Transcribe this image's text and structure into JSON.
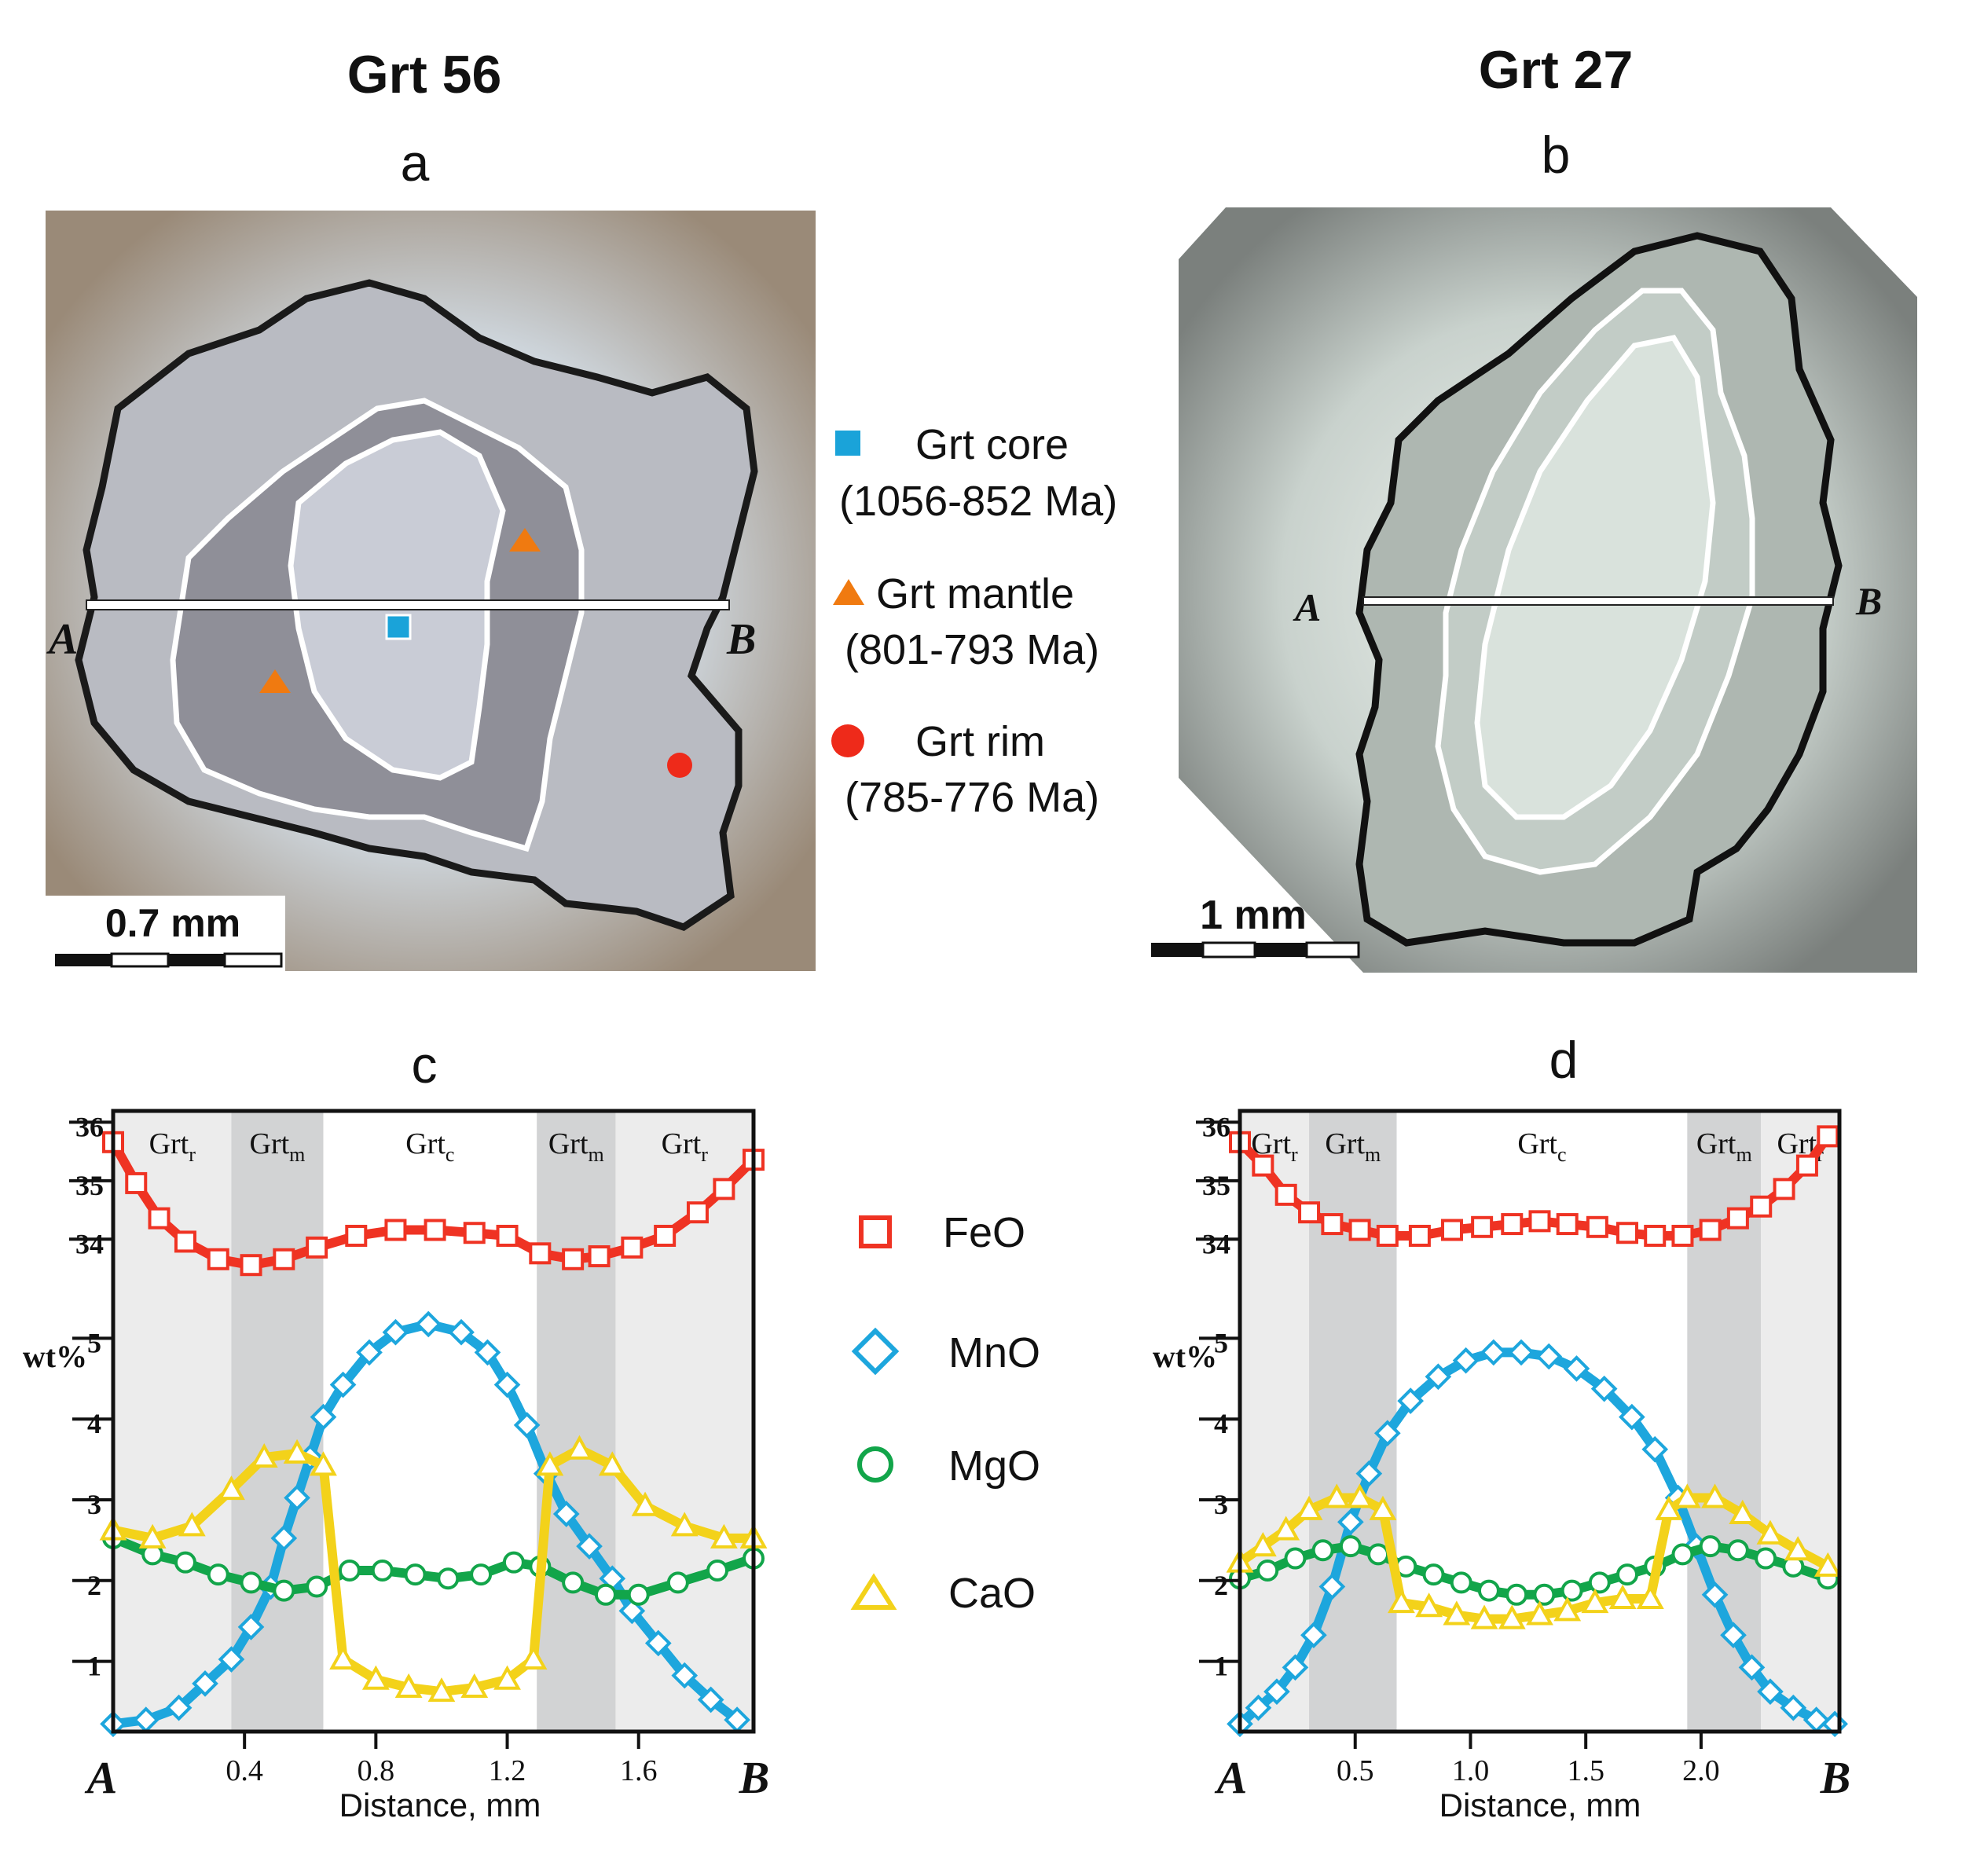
{
  "panels": {
    "a": {
      "title": "Grt 56",
      "letter": "a",
      "scale_label": "0.7 mm",
      "point_a": "A",
      "point_b": "B"
    },
    "b": {
      "title": "Grt 27",
      "letter": "b",
      "scale_label": "1 mm",
      "point_a": "A",
      "point_b": "B"
    }
  },
  "spot_legend": [
    {
      "name": "Grt core",
      "age": "(1056-852 Ma)",
      "shape": "square",
      "color": "#1aa3d9"
    },
    {
      "name": "Grt mantle",
      "age": "(801-793 Ma)",
      "shape": "triangle",
      "color": "#f07a10"
    },
    {
      "name": "Grt rim",
      "age": "(785-776 Ma)",
      "shape": "circle",
      "color": "#ee2a1a"
    }
  ],
  "series_legend": [
    {
      "name": "FeO",
      "marker": "square",
      "color": "#ef3323"
    },
    {
      "name": "MnO",
      "marker": "diamond",
      "color": "#1da6dd"
    },
    {
      "name": "MgO",
      "marker": "circle",
      "color": "#12a54a"
    },
    {
      "name": "CaO",
      "marker": "triangle",
      "color": "#f3d21a"
    }
  ],
  "chart_data": [
    {
      "type": "line",
      "panel": "c",
      "title": "c",
      "xlabel": "Distance, mm",
      "ylabel": "wt%",
      "x_start_label": "A",
      "x_end_label": "B",
      "xlim": [
        0,
        1.95
      ],
      "xticks": [
        0.4,
        0.8,
        1.2,
        1.6
      ],
      "xtick_labels": [
        "0.4",
        "0.8",
        "1.2",
        "1.6"
      ],
      "yticks_lower": [
        1,
        2,
        3,
        4,
        5
      ],
      "yticks_upper": [
        34,
        35,
        36
      ],
      "zones": [
        {
          "label": "Grt",
          "sub": "r",
          "x0": 0.0,
          "x1": 0.36,
          "shade": "light"
        },
        {
          "label": "Grt",
          "sub": "m",
          "x0": 0.36,
          "x1": 0.64,
          "shade": "dark"
        },
        {
          "label": "Grt",
          "sub": "c",
          "x0": 0.64,
          "x1": 1.29,
          "shade": "white"
        },
        {
          "label": "Grt",
          "sub": "m",
          "x0": 1.29,
          "x1": 1.53,
          "shade": "dark"
        },
        {
          "label": "Grt",
          "sub": "r",
          "x0": 1.53,
          "x1": 1.95,
          "shade": "light"
        }
      ],
      "series": [
        {
          "name": "FeO",
          "x": [
            0.0,
            0.07,
            0.14,
            0.22,
            0.32,
            0.42,
            0.52,
            0.62,
            0.74,
            0.86,
            0.98,
            1.1,
            1.2,
            1.3,
            1.4,
            1.48,
            1.58,
            1.68,
            1.78,
            1.86,
            1.95
          ],
          "values": [
            35.9,
            35.2,
            34.6,
            34.2,
            33.9,
            33.8,
            33.9,
            34.1,
            34.3,
            34.4,
            34.4,
            34.35,
            34.3,
            34.0,
            33.9,
            33.95,
            34.1,
            34.3,
            34.7,
            35.1,
            35.6
          ]
        },
        {
          "name": "MnO",
          "x": [
            0.0,
            0.1,
            0.2,
            0.28,
            0.36,
            0.42,
            0.48,
            0.52,
            0.56,
            0.6,
            0.64,
            0.7,
            0.78,
            0.86,
            0.96,
            1.06,
            1.14,
            1.2,
            1.26,
            1.32,
            1.38,
            1.45,
            1.52,
            1.58,
            1.66,
            1.74,
            1.82,
            1.9
          ],
          "values": [
            0.4,
            0.45,
            0.6,
            0.9,
            1.2,
            1.6,
            2.1,
            2.7,
            3.2,
            3.7,
            4.2,
            4.6,
            5.0,
            5.25,
            5.35,
            5.25,
            5.0,
            4.6,
            4.1,
            3.5,
            3.0,
            2.6,
            2.2,
            1.8,
            1.4,
            1.0,
            0.7,
            0.45
          ]
        },
        {
          "name": "MgO",
          "x": [
            0.0,
            0.12,
            0.22,
            0.32,
            0.42,
            0.52,
            0.62,
            0.72,
            0.82,
            0.92,
            1.02,
            1.12,
            1.22,
            1.3,
            1.4,
            1.5,
            1.6,
            1.72,
            1.84,
            1.95
          ],
          "values": [
            2.7,
            2.5,
            2.4,
            2.25,
            2.15,
            2.05,
            2.1,
            2.3,
            2.3,
            2.25,
            2.2,
            2.25,
            2.4,
            2.35,
            2.15,
            2.0,
            2.0,
            2.15,
            2.3,
            2.45
          ]
        },
        {
          "name": "CaO",
          "x": [
            0.0,
            0.12,
            0.24,
            0.36,
            0.46,
            0.56,
            0.64,
            0.7,
            0.8,
            0.9,
            1.0,
            1.1,
            1.2,
            1.28,
            1.33,
            1.42,
            1.52,
            1.62,
            1.74,
            1.86,
            1.95
          ],
          "values": [
            2.8,
            2.7,
            2.85,
            3.3,
            3.7,
            3.75,
            3.6,
            1.2,
            0.95,
            0.85,
            0.8,
            0.85,
            0.95,
            1.2,
            3.6,
            3.8,
            3.6,
            3.1,
            2.85,
            2.7,
            2.7
          ]
        }
      ]
    },
    {
      "type": "line",
      "panel": "d",
      "title": "d",
      "xlabel": "Distance, mm",
      "ylabel": "wt%",
      "x_start_label": "A",
      "x_end_label": "B",
      "xlim": [
        0,
        2.6
      ],
      "xticks": [
        0.5,
        1.0,
        1.5,
        2.0
      ],
      "xtick_labels": [
        "0.5",
        "1.0",
        "1.5",
        "2.0"
      ],
      "yticks_lower": [
        1,
        2,
        3,
        4,
        5
      ],
      "yticks_upper": [
        34,
        35,
        36
      ],
      "zones": [
        {
          "label": "Grt",
          "sub": "r",
          "x0": 0.0,
          "x1": 0.3,
          "shade": "light"
        },
        {
          "label": "Grt",
          "sub": "m",
          "x0": 0.3,
          "x1": 0.68,
          "shade": "dark"
        },
        {
          "label": "Grt",
          "sub": "c",
          "x0": 0.68,
          "x1": 1.94,
          "shade": "white"
        },
        {
          "label": "Grt",
          "sub": "m",
          "x0": 1.94,
          "x1": 2.26,
          "shade": "dark"
        },
        {
          "label": "Grt",
          "sub": "r",
          "x0": 2.26,
          "x1": 2.6,
          "shade": "light"
        }
      ],
      "series": [
        {
          "name": "FeO",
          "x": [
            0.0,
            0.1,
            0.2,
            0.3,
            0.4,
            0.52,
            0.64,
            0.78,
            0.92,
            1.05,
            1.18,
            1.3,
            1.42,
            1.55,
            1.68,
            1.8,
            1.92,
            2.04,
            2.16,
            2.26,
            2.36,
            2.46,
            2.55
          ],
          "values": [
            35.9,
            35.5,
            35.0,
            34.7,
            34.5,
            34.4,
            34.3,
            34.3,
            34.4,
            34.45,
            34.5,
            34.55,
            34.5,
            34.45,
            34.35,
            34.3,
            34.3,
            34.4,
            34.6,
            34.8,
            35.1,
            35.5,
            36.0
          ]
        },
        {
          "name": "MnO",
          "x": [
            0.0,
            0.08,
            0.16,
            0.24,
            0.32,
            0.4,
            0.48,
            0.56,
            0.64,
            0.74,
            0.86,
            0.98,
            1.1,
            1.22,
            1.34,
            1.46,
            1.58,
            1.7,
            1.8,
            1.9,
            1.98,
            2.06,
            2.14,
            2.22,
            2.3,
            2.4,
            2.5,
            2.58
          ],
          "values": [
            0.4,
            0.6,
            0.8,
            1.1,
            1.5,
            2.1,
            2.9,
            3.5,
            4.0,
            4.4,
            4.7,
            4.9,
            5.0,
            5.0,
            4.95,
            4.8,
            4.55,
            4.2,
            3.8,
            3.2,
            2.6,
            2.0,
            1.5,
            1.1,
            0.8,
            0.6,
            0.45,
            0.4
          ]
        },
        {
          "name": "MgO",
          "x": [
            0.0,
            0.12,
            0.24,
            0.36,
            0.48,
            0.6,
            0.72,
            0.84,
            0.96,
            1.08,
            1.2,
            1.32,
            1.44,
            1.56,
            1.68,
            1.8,
            1.92,
            2.04,
            2.16,
            2.28,
            2.4,
            2.55
          ],
          "values": [
            2.2,
            2.3,
            2.45,
            2.55,
            2.6,
            2.5,
            2.35,
            2.25,
            2.15,
            2.05,
            2.0,
            2.0,
            2.05,
            2.15,
            2.25,
            2.35,
            2.5,
            2.6,
            2.55,
            2.45,
            2.35,
            2.2
          ]
        },
        {
          "name": "CaO",
          "x": [
            0.0,
            0.1,
            0.2,
            0.3,
            0.42,
            0.52,
            0.62,
            0.7,
            0.82,
            0.94,
            1.06,
            1.18,
            1.3,
            1.42,
            1.54,
            1.66,
            1.78,
            1.86,
            1.94,
            2.06,
            2.18,
            2.3,
            2.42,
            2.55
          ],
          "values": [
            2.4,
            2.6,
            2.8,
            3.05,
            3.2,
            3.2,
            3.05,
            1.9,
            1.85,
            1.75,
            1.7,
            1.7,
            1.75,
            1.8,
            1.9,
            1.95,
            1.95,
            3.05,
            3.2,
            3.2,
            3.0,
            2.75,
            2.55,
            2.35
          ]
        }
      ]
    }
  ]
}
